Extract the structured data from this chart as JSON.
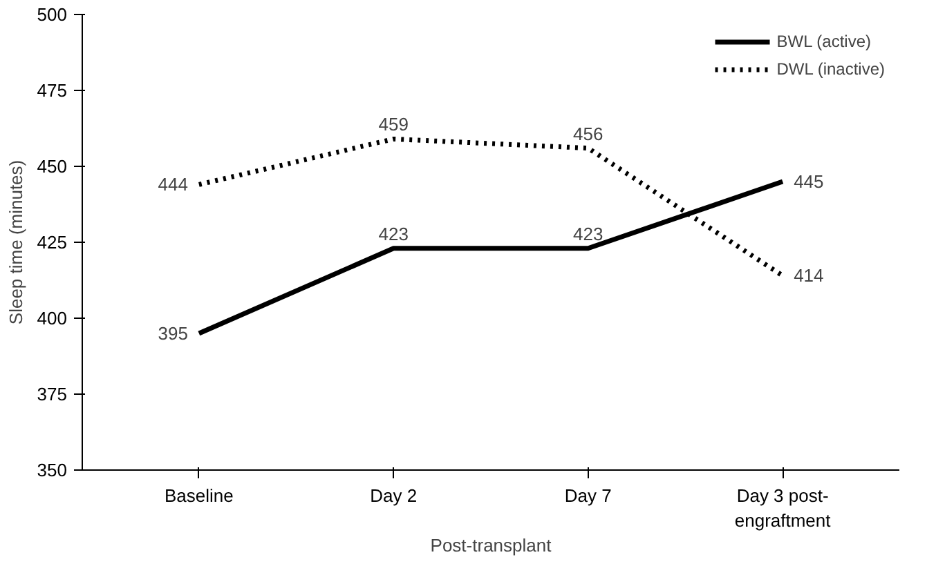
{
  "chart_data": {
    "type": "line",
    "ylabel": "Sleep time (minutes)",
    "xlabel": "Post-transplant",
    "categories": [
      "Baseline",
      "Day 2",
      "Day 7",
      "Day 3 post-\nengraftment"
    ],
    "series": [
      {
        "name": "BWL (active)",
        "color": "#000000",
        "line_style": "solid",
        "values": [
          395,
          423,
          423,
          445
        ]
      },
      {
        "name": "DWL (inactive)",
        "color": "#000000",
        "line_style": "dotted",
        "values": [
          444,
          459,
          456,
          414
        ]
      }
    ],
    "ylim": [
      350,
      500
    ],
    "yticks": [
      350,
      375,
      400,
      425,
      450,
      475,
      500
    ],
    "data_labels": true,
    "grid": false,
    "legend": "top right",
    "marker": "none"
  }
}
